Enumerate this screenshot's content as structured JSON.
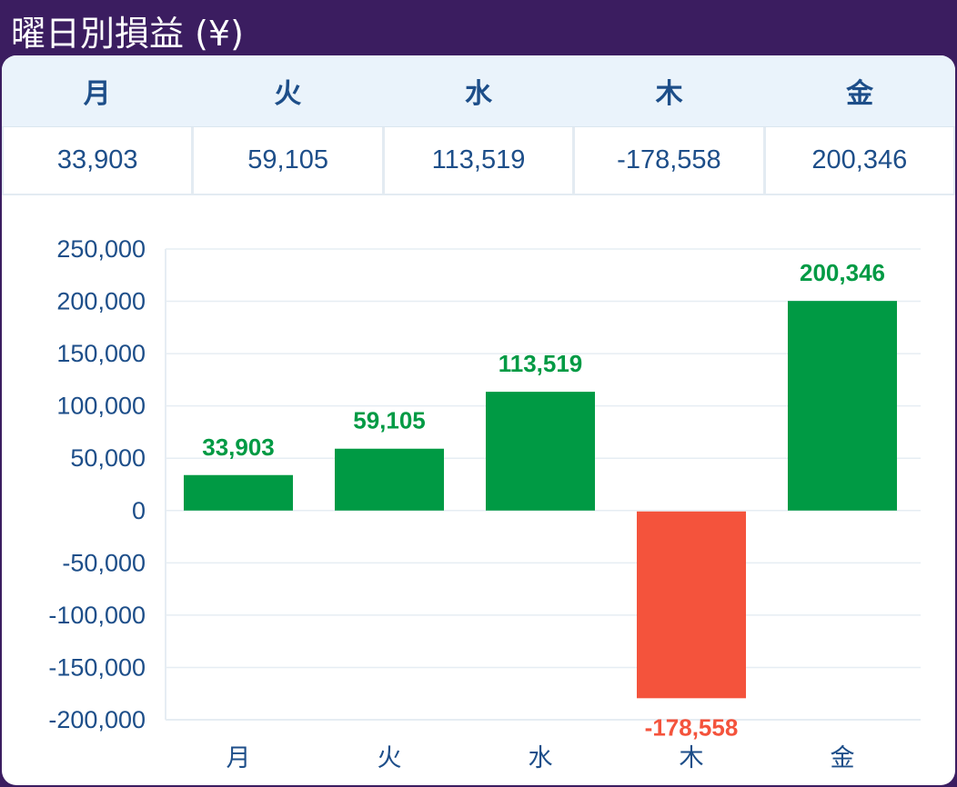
{
  "header": {
    "title": "曜日別損益 (¥)"
  },
  "table": {
    "headers": [
      "月",
      "火",
      "水",
      "木",
      "金"
    ],
    "values": [
      "33,903",
      "59,105",
      "113,519",
      "-178,558",
      "200,346"
    ]
  },
  "colors": {
    "positive": "#009a44",
    "negative": "#f4533c",
    "text": "#1d4e89",
    "frame": "#3b1d60"
  },
  "chart_data": {
    "type": "bar",
    "categories": [
      "月",
      "火",
      "水",
      "木",
      "金"
    ],
    "values": [
      33903,
      59105,
      113519,
      -178558,
      200346
    ],
    "data_labels": [
      "33,903",
      "59,105",
      "113,519",
      "-178,558",
      "200,346"
    ],
    "yticks": [
      250000,
      200000,
      150000,
      100000,
      50000,
      0,
      -50000,
      -100000,
      -150000,
      -200000
    ],
    "ytick_labels": [
      "250,000",
      "200,000",
      "150,000",
      "100,000",
      "50,000",
      "0",
      "-50,000",
      "-100,000",
      "-150,000",
      "-200,000"
    ],
    "ylim": [
      -200000,
      250000
    ],
    "grid": true
  }
}
